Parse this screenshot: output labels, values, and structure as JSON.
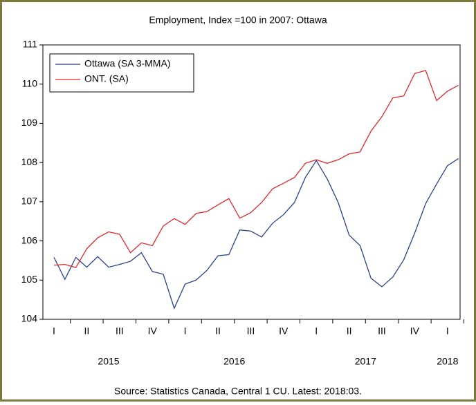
{
  "chart_data": {
    "type": "line",
    "title": "Employment, Index =100 in 2007: Ottawa",
    "source": "Source: Statistics Canada, Central 1 CU. Latest: 2018:03.",
    "categories": [
      "I",
      null,
      null,
      "II",
      null,
      null,
      "III",
      null,
      null,
      "IV",
      null,
      null,
      "I",
      null,
      null,
      "II",
      null,
      null,
      "III",
      null,
      null,
      "IV",
      null,
      null,
      "I",
      null,
      null,
      "II",
      null,
      null,
      "III",
      null,
      null,
      "IV",
      null,
      null,
      "I",
      null
    ],
    "years": [
      "2015",
      "2016",
      "2017",
      "2018"
    ],
    "ylim": [
      104,
      111
    ],
    "yticks": [
      104,
      105,
      106,
      107,
      108,
      109,
      110,
      111
    ],
    "legend": "upper left",
    "series": [
      {
        "name": "Ottawa (SA 3-MMA)",
        "color": "#2b3f8c",
        "values": [
          105.58,
          105.02,
          105.58,
          105.33,
          105.6,
          105.33,
          105.4,
          105.48,
          105.7,
          105.22,
          105.15,
          104.28,
          104.9,
          105.0,
          105.25,
          105.62,
          105.65,
          106.28,
          106.25,
          106.1,
          106.45,
          106.67,
          106.98,
          107.62,
          108.05,
          107.58,
          106.98,
          106.15,
          105.88,
          105.05,
          104.83,
          105.08,
          105.52,
          106.2,
          106.95,
          107.45,
          107.92,
          108.1
        ]
      },
      {
        "name": "ONT. (SA)",
        "color": "#e0262a",
        "values": [
          105.38,
          105.4,
          105.32,
          105.8,
          106.08,
          106.23,
          106.17,
          105.7,
          105.95,
          105.88,
          106.38,
          106.57,
          106.42,
          106.7,
          106.75,
          106.92,
          107.08,
          106.58,
          106.72,
          106.98,
          107.33,
          107.47,
          107.62,
          107.98,
          108.07,
          107.98,
          108.07,
          108.22,
          108.27,
          108.8,
          109.17,
          109.65,
          109.7,
          110.27,
          110.35,
          109.58,
          109.82,
          109.97
        ]
      }
    ]
  }
}
